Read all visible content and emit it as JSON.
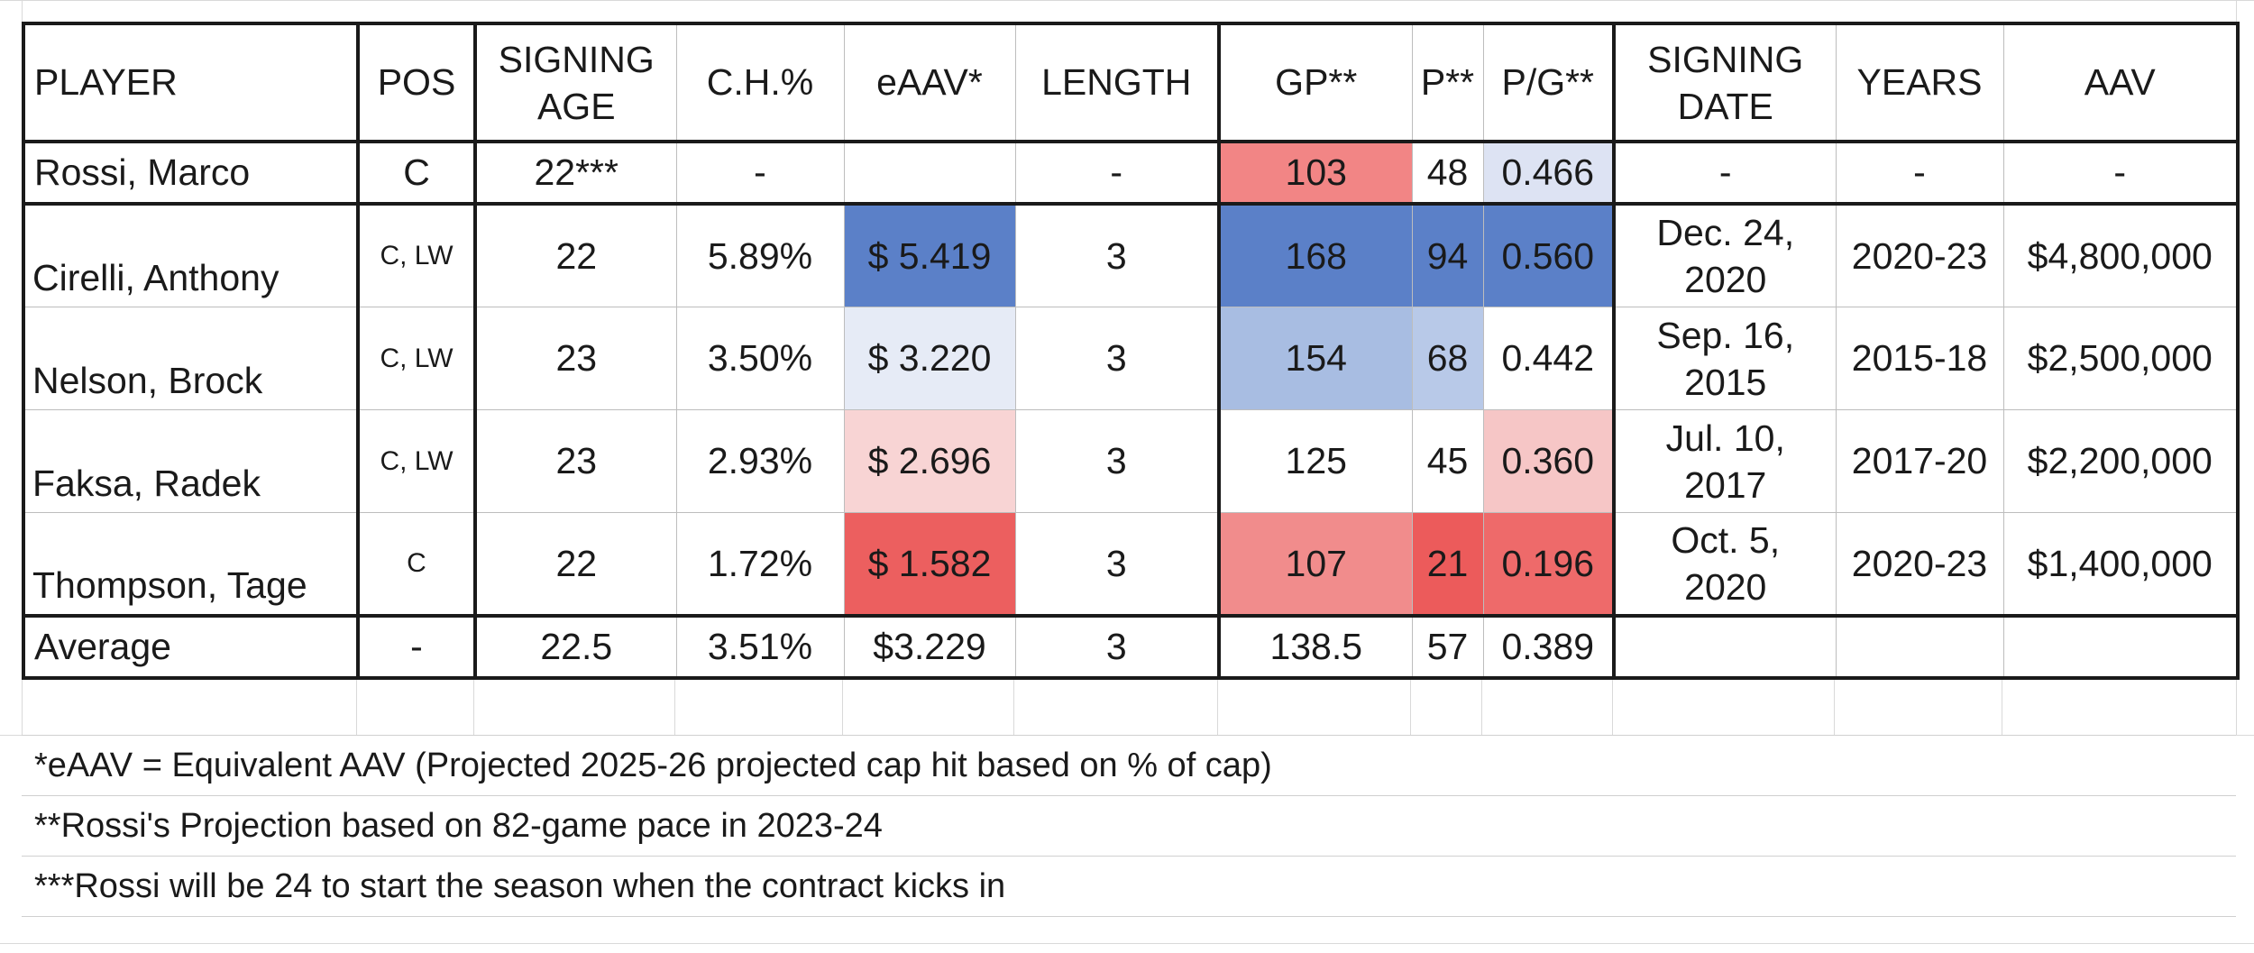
{
  "headers": {
    "player": "PLAYER",
    "pos": "POS",
    "signing_age": [
      "SIGNING",
      "AGE"
    ],
    "ch_pct": "C.H.%",
    "eaav": "eAAV*",
    "length": "LENGTH",
    "gp": "GP**",
    "p": "P**",
    "pg": "P/G**",
    "signing_date": [
      "SIGNING",
      "DATE"
    ],
    "years": "YEARS",
    "aav": "AAV"
  },
  "rossi": {
    "player": "Rossi, Marco",
    "pos": "C",
    "age": "22***",
    "ch_pct": "-",
    "eaav": "",
    "length": "-",
    "gp": "103",
    "p": "48",
    "pg": "0.466",
    "signing_date": "-",
    "years": "-",
    "aav": "-"
  },
  "comparables": [
    {
      "player": "Cirelli, Anthony",
      "pos": "C, LW",
      "age": "22",
      "ch_pct": "5.89%",
      "eaav": "$ 5.419",
      "length": "3",
      "gp": "168",
      "p": "94",
      "pg": "0.560",
      "signing_date": [
        "Dec. 24,",
        "2020"
      ],
      "years": "2020-23",
      "aav": "$4,800,000"
    },
    {
      "player": "Nelson, Brock",
      "pos": "C, LW",
      "age": "23",
      "ch_pct": "3.50%",
      "eaav": "$ 3.220",
      "length": "3",
      "gp": "154",
      "p": "68",
      "pg": "0.442",
      "signing_date": [
        "Sep. 16,",
        "2015"
      ],
      "years": "2015-18",
      "aav": "$2,500,000"
    },
    {
      "player": "Faksa, Radek",
      "pos": "C, LW",
      "age": "23",
      "ch_pct": "2.93%",
      "eaav": "$ 2.696",
      "length": "3",
      "gp": "125",
      "p": "45",
      "pg": "0.360",
      "signing_date": [
        "Jul. 10,",
        "2017"
      ],
      "years": "2017-20",
      "aav": "$2,200,000"
    },
    {
      "player": "Thompson, Tage",
      "pos": "C",
      "age": "22",
      "ch_pct": "1.72%",
      "eaav": "$ 1.582",
      "length": "3",
      "gp": "107",
      "p": "21",
      "pg": "0.196",
      "signing_date": [
        "Oct. 5,",
        "2020"
      ],
      "years": "2020-23",
      "aav": "$1,400,000"
    }
  ],
  "average": {
    "player": "Average",
    "pos": "-",
    "age": "22.5",
    "ch_pct": "3.51%",
    "eaav": "$3.229",
    "length": "3",
    "gp": "138.5",
    "p": "57",
    "pg": "0.389"
  },
  "notes": [
    "*eAAV = Equivalent AAV (Projected 2025-26 projected cap hit based on % of cap)",
    "**Rossi's Projection based on 82-game pace in 2023-24",
    "***Rossi will be 24 to start the season when the contract kicks in"
  ],
  "colors": {
    "rossi_gp": "#f28585",
    "rossi_pg": "#dde3f3",
    "cirelli_eaav": "#5b80c8",
    "cirelli_gp": "#5b80c8",
    "cirelli_p": "#5b80c8",
    "cirelli_pg": "#5b80c8",
    "nelson_eaav": "#e6ebf6",
    "nelson_gp": "#a8bde2",
    "nelson_p": "#b8c9e8",
    "faksa_eaav": "#f8d4d4",
    "faksa_pg": "#f6c6c6",
    "thompson_eaav": "#ec5f5f",
    "thompson_gp": "#f18c8c",
    "thompson_p": "#ec5b5b",
    "thompson_pg": "#ee6a6a"
  }
}
